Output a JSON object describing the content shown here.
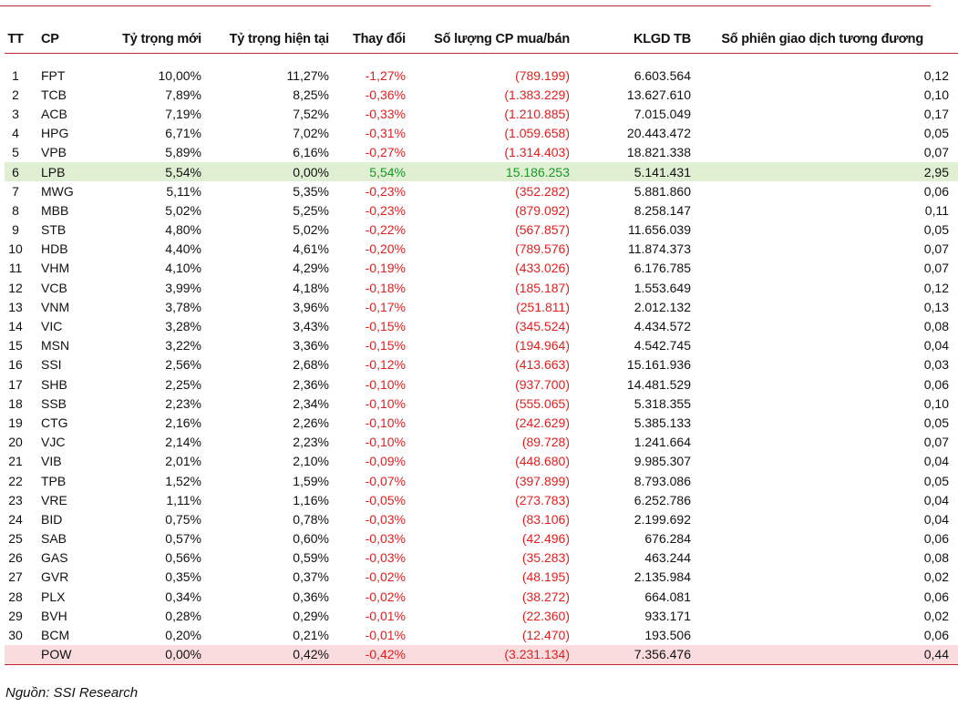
{
  "headers": {
    "tt": "TT",
    "cp": "CP",
    "new_weight": "Tỷ trọng mới",
    "current_weight": "Tỷ trọng hiện tại",
    "change": "Thay đổi",
    "shares": "Số lượng CP mua/bán",
    "avg_volume": "KLGD TB",
    "sessions": "Số phiên giao dịch tương đương"
  },
  "rows": [
    {
      "tt": "1",
      "cp": "FPT",
      "new": "10,00%",
      "cur": "11,27%",
      "chg": "-1,27%",
      "shares": "(789.199)",
      "vol": "6.603.564",
      "ses": "0,12"
    },
    {
      "tt": "2",
      "cp": "TCB",
      "new": "7,89%",
      "cur": "8,25%",
      "chg": "-0,36%",
      "shares": "(1.383.229)",
      "vol": "13.627.610",
      "ses": "0,10"
    },
    {
      "tt": "3",
      "cp": "ACB",
      "new": "7,19%",
      "cur": "7,52%",
      "chg": "-0,33%",
      "shares": "(1.210.885)",
      "vol": "7.015.049",
      "ses": "0,17"
    },
    {
      "tt": "4",
      "cp": "HPG",
      "new": "6,71%",
      "cur": "7,02%",
      "chg": "-0,31%",
      "shares": "(1.059.658)",
      "vol": "20.443.472",
      "ses": "0,05"
    },
    {
      "tt": "5",
      "cp": "VPB",
      "new": "5,89%",
      "cur": "6,16%",
      "chg": "-0,27%",
      "shares": "(1.314.403)",
      "vol": "18.821.338",
      "ses": "0,07"
    },
    {
      "tt": "6",
      "cp": "LPB",
      "new": "5,54%",
      "cur": "0,00%",
      "chg": "5,54%",
      "shares": "15.186.253",
      "vol": "5.141.431",
      "ses": "2,95"
    },
    {
      "tt": "7",
      "cp": "MWG",
      "new": "5,11%",
      "cur": "5,35%",
      "chg": "-0,23%",
      "shares": "(352.282)",
      "vol": "5.881.860",
      "ses": "0,06"
    },
    {
      "tt": "8",
      "cp": "MBB",
      "new": "5,02%",
      "cur": "5,25%",
      "chg": "-0,23%",
      "shares": "(879.092)",
      "vol": "8.258.147",
      "ses": "0,11"
    },
    {
      "tt": "9",
      "cp": "STB",
      "new": "4,80%",
      "cur": "5,02%",
      "chg": "-0,22%",
      "shares": "(567.857)",
      "vol": "11.656.039",
      "ses": "0,05"
    },
    {
      "tt": "10",
      "cp": "HDB",
      "new": "4,40%",
      "cur": "4,61%",
      "chg": "-0,20%",
      "shares": "(789.576)",
      "vol": "11.874.373",
      "ses": "0,07"
    },
    {
      "tt": "11",
      "cp": "VHM",
      "new": "4,10%",
      "cur": "4,29%",
      "chg": "-0,19%",
      "shares": "(433.026)",
      "vol": "6.176.785",
      "ses": "0,07"
    },
    {
      "tt": "12",
      "cp": "VCB",
      "new": "3,99%",
      "cur": "4,18%",
      "chg": "-0,18%",
      "shares": "(185.187)",
      "vol": "1.553.649",
      "ses": "0,12"
    },
    {
      "tt": "13",
      "cp": "VNM",
      "new": "3,78%",
      "cur": "3,96%",
      "chg": "-0,17%",
      "shares": "(251.811)",
      "vol": "2.012.132",
      "ses": "0,13"
    },
    {
      "tt": "14",
      "cp": "VIC",
      "new": "3,28%",
      "cur": "3,43%",
      "chg": "-0,15%",
      "shares": "(345.524)",
      "vol": "4.434.572",
      "ses": "0,08"
    },
    {
      "tt": "15",
      "cp": "MSN",
      "new": "3,22%",
      "cur": "3,36%",
      "chg": "-0,15%",
      "shares": "(194.964)",
      "vol": "4.542.745",
      "ses": "0,04"
    },
    {
      "tt": "16",
      "cp": "SSI",
      "new": "2,56%",
      "cur": "2,68%",
      "chg": "-0,12%",
      "shares": "(413.663)",
      "vol": "15.161.936",
      "ses": "0,03"
    },
    {
      "tt": "17",
      "cp": "SHB",
      "new": "2,25%",
      "cur": "2,36%",
      "chg": "-0,10%",
      "shares": "(937.700)",
      "vol": "14.481.529",
      "ses": "0,06"
    },
    {
      "tt": "18",
      "cp": "SSB",
      "new": "2,23%",
      "cur": "2,34%",
      "chg": "-0,10%",
      "shares": "(555.065)",
      "vol": "5.318.355",
      "ses": "0,10"
    },
    {
      "tt": "19",
      "cp": "CTG",
      "new": "2,16%",
      "cur": "2,26%",
      "chg": "-0,10%",
      "shares": "(242.629)",
      "vol": "5.385.133",
      "ses": "0,05"
    },
    {
      "tt": "20",
      "cp": "VJC",
      "new": "2,14%",
      "cur": "2,23%",
      "chg": "-0,10%",
      "shares": "(89.728)",
      "vol": "1.241.664",
      "ses": "0,07"
    },
    {
      "tt": "21",
      "cp": "VIB",
      "new": "2,01%",
      "cur": "2,10%",
      "chg": "-0,09%",
      "shares": "(448.680)",
      "vol": "9.985.307",
      "ses": "0,04"
    },
    {
      "tt": "22",
      "cp": "TPB",
      "new": "1,52%",
      "cur": "1,59%",
      "chg": "-0,07%",
      "shares": "(397.899)",
      "vol": "8.793.086",
      "ses": "0,05"
    },
    {
      "tt": "23",
      "cp": "VRE",
      "new": "1,11%",
      "cur": "1,16%",
      "chg": "-0,05%",
      "shares": "(273.783)",
      "vol": "6.252.786",
      "ses": "0,04"
    },
    {
      "tt": "24",
      "cp": "BID",
      "new": "0,75%",
      "cur": "0,78%",
      "chg": "-0,03%",
      "shares": "(83.106)",
      "vol": "2.199.692",
      "ses": "0,04"
    },
    {
      "tt": "25",
      "cp": "SAB",
      "new": "0,57%",
      "cur": "0,60%",
      "chg": "-0,03%",
      "shares": "(42.496)",
      "vol": "676.284",
      "ses": "0,06"
    },
    {
      "tt": "26",
      "cp": "GAS",
      "new": "0,56%",
      "cur": "0,59%",
      "chg": "-0,03%",
      "shares": "(35.283)",
      "vol": "463.244",
      "ses": "0,08"
    },
    {
      "tt": "27",
      "cp": "GVR",
      "new": "0,35%",
      "cur": "0,37%",
      "chg": "-0,02%",
      "shares": "(48.195)",
      "vol": "2.135.984",
      "ses": "0,02"
    },
    {
      "tt": "28",
      "cp": "PLX",
      "new": "0,34%",
      "cur": "0,36%",
      "chg": "-0,02%",
      "shares": "(38.272)",
      "vol": "664.081",
      "ses": "0,06"
    },
    {
      "tt": "29",
      "cp": "BVH",
      "new": "0,28%",
      "cur": "0,29%",
      "chg": "-0,01%",
      "shares": "(22.360)",
      "vol": "933.171",
      "ses": "0,02"
    },
    {
      "tt": "30",
      "cp": "BCM",
      "new": "0,20%",
      "cur": "0,21%",
      "chg": "-0,01%",
      "shares": "(12.470)",
      "vol": "193.506",
      "ses": "0,06"
    },
    {
      "tt": "",
      "cp": "POW",
      "new": "0,00%",
      "cur": "0,42%",
      "chg": "-0,42%",
      "shares": "(3.231.134)",
      "vol": "7.356.476",
      "ses": "0,44"
    }
  ],
  "source": "Nguồn: SSI Research",
  "colors": {
    "rule": "#c0282d",
    "negative": "#e02020",
    "positive": "#159a27",
    "added_row_bg": "#e0efd2",
    "removed_row_bg": "#fadcdf"
  }
}
